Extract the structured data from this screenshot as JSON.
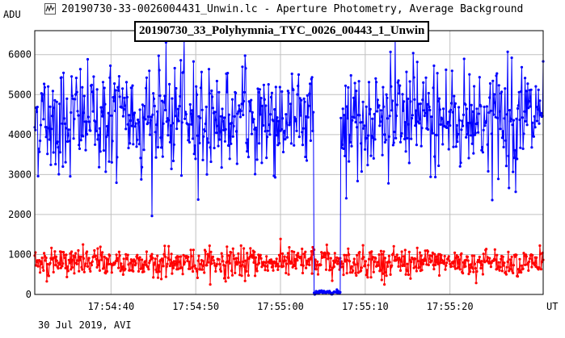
{
  "window": {
    "title": "20190730-33-0026004431_Unwin.lc - Aperture Photometry, Average Background",
    "icon": "light-curve-app-icon"
  },
  "footer_text": "30 Jul 2019, AVI",
  "chart_data": {
    "type": "scatter",
    "title": "20190730_33_Polyhymnia_TYC_0026_00443_1_Unwin",
    "ylabel": "ADU",
    "xlabel": "UT",
    "x_range_seconds_after": "17:54:30",
    "xlim": [
      "17:54:31",
      "17:55:31"
    ],
    "ylim": [
      0,
      6600
    ],
    "yticks": [
      0,
      1000,
      2000,
      3000,
      4000,
      5000,
      6000
    ],
    "xticks": [
      "17:54:40",
      "17:54:50",
      "17:55:00",
      "17:55:10",
      "17:55:20"
    ],
    "grid": true,
    "series": [
      {
        "color": "#0000ff",
        "description": "target star brightness",
        "baseline_mean": 4400,
        "baseline_std": 700,
        "occultation_start": "17:55:03.9",
        "occultation_end": "17:55:07.1",
        "occulted_level": 60
      },
      {
        "color": "#ff0000",
        "description": "background level",
        "baseline_mean": 800,
        "baseline_std": 180
      }
    ]
  }
}
